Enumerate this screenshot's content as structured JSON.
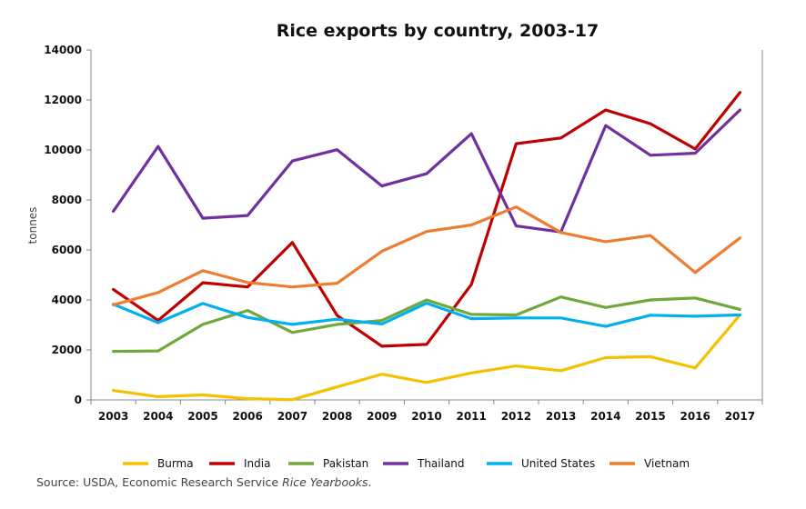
{
  "chart_data": {
    "type": "line",
    "title": "Rice exports by country, 2003-17",
    "ylabel": "tonnes",
    "xlabel": "",
    "x": [
      "2003",
      "2004",
      "2005",
      "2006",
      "2007",
      "2008",
      "2009",
      "2010",
      "2011",
      "2012",
      "2013",
      "2014",
      "2015",
      "2016",
      "2017"
    ],
    "ylim": [
      0,
      14000
    ],
    "yticks": [
      0,
      2000,
      4000,
      6000,
      8000,
      10000,
      12000,
      14000
    ],
    "grid": false,
    "legend_position": "bottom",
    "series": [
      {
        "name": "Burma",
        "color": "#f5c000",
        "values": [
          380,
          130,
          200,
          50,
          10,
          520,
          1030,
          700,
          1080,
          1360,
          1170,
          1690,
          1730,
          1280,
          3400
        ]
      },
      {
        "name": "India",
        "color": "#c00000",
        "values": [
          4420,
          3180,
          4690,
          4520,
          6300,
          3380,
          2150,
          2220,
          4620,
          10250,
          10480,
          11600,
          11050,
          10040,
          12300
        ]
      },
      {
        "name": "Pakistan",
        "color": "#70a83b",
        "values": [
          1940,
          1960,
          3020,
          3580,
          2700,
          3020,
          3180,
          4000,
          3420,
          3400,
          4120,
          3700,
          4000,
          4080,
          3620
        ]
      },
      {
        "name": "Thailand",
        "color": "#7030a0",
        "values": [
          7550,
          10140,
          7270,
          7380,
          9560,
          10010,
          8560,
          9050,
          10650,
          6960,
          6720,
          10980,
          9790,
          9870,
          11600
        ]
      },
      {
        "name": "United States",
        "color": "#00b0f0",
        "values": [
          3830,
          3090,
          3860,
          3300,
          3020,
          3230,
          3040,
          3870,
          3250,
          3280,
          3280,
          2940,
          3390,
          3350,
          3400
        ]
      },
      {
        "name": "Vietnam",
        "color": "#ed7d31",
        "values": [
          3800,
          4300,
          5170,
          4700,
          4520,
          4670,
          5950,
          6740,
          7000,
          7720,
          6700,
          6330,
          6580,
          5100,
          6480
        ]
      }
    ]
  },
  "source": {
    "prefix": "Source: USDA, Economic Research Service ",
    "italic": "Rice  Yearbooks",
    "suffix": "."
  }
}
